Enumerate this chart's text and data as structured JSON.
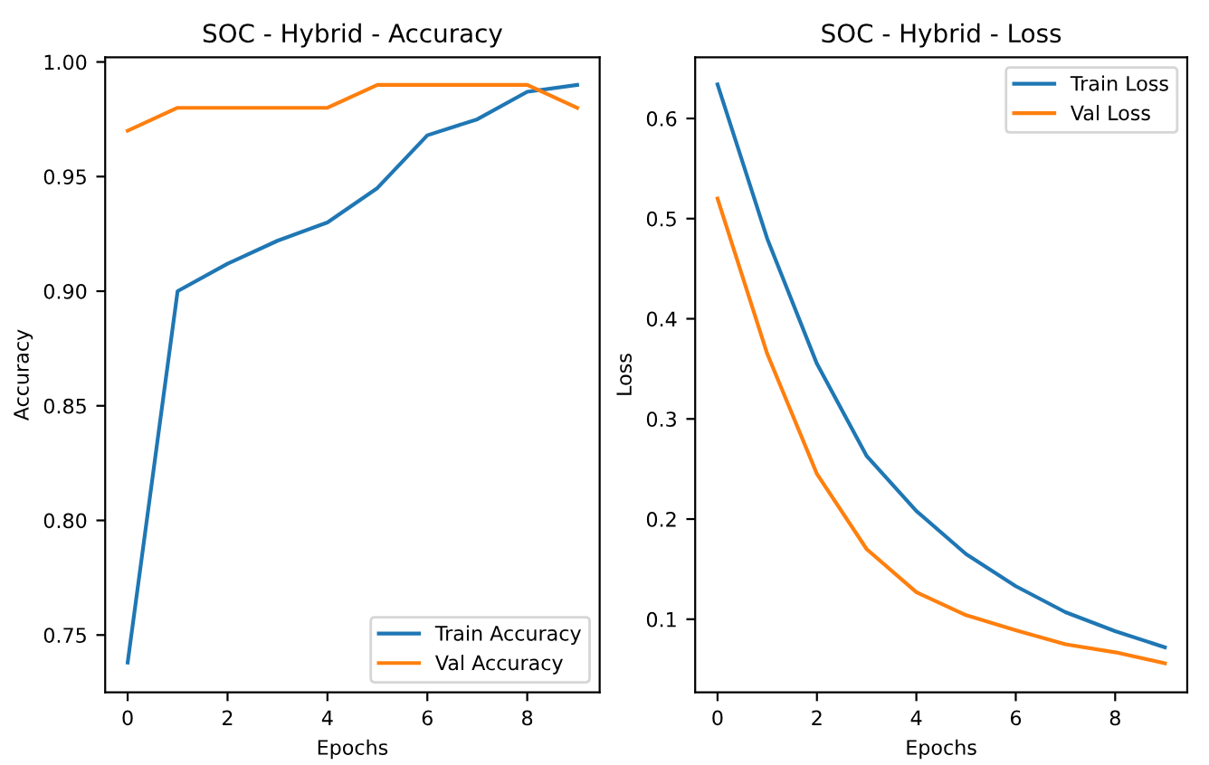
{
  "chart_data": [
    {
      "type": "line",
      "title": "SOC - Hybrid - Accuracy",
      "xlabel": "Epochs",
      "ylabel": "Accuracy",
      "x": [
        0,
        1,
        2,
        3,
        4,
        5,
        6,
        7,
        8,
        9
      ],
      "xlim": [
        -0.45,
        9.45
      ],
      "xticks": [
        0,
        2,
        4,
        6,
        8
      ],
      "ylim": [
        0.725,
        1.002
      ],
      "yticks": [
        {
          "value": 0.75,
          "label": "0.75"
        },
        {
          "value": 0.8,
          "label": "0.80"
        },
        {
          "value": 0.85,
          "label": "0.85"
        },
        {
          "value": 0.9,
          "label": "0.90"
        },
        {
          "value": 0.95,
          "label": "0.95"
        },
        {
          "value": 1.0,
          "label": "1.00"
        }
      ],
      "grid": false,
      "legend": "bottom right",
      "series": [
        {
          "name": "Train Accuracy",
          "color": "#1f77b4",
          "values": [
            0.738,
            0.9,
            0.912,
            0.922,
            0.93,
            0.945,
            0.968,
            0.975,
            0.987,
            0.99
          ]
        },
        {
          "name": "Val Accuracy",
          "color": "#ff7f0e",
          "values": [
            0.97,
            0.98,
            0.98,
            0.98,
            0.98,
            0.99,
            0.99,
            0.99,
            0.99,
            0.98
          ]
        }
      ]
    },
    {
      "type": "line",
      "title": "SOC - Hybrid - Loss",
      "xlabel": "Epochs",
      "ylabel": "Loss",
      "x": [
        0,
        1,
        2,
        3,
        4,
        5,
        6,
        7,
        8,
        9
      ],
      "xlim": [
        -0.45,
        9.45
      ],
      "xticks": [
        0,
        2,
        4,
        6,
        8
      ],
      "ylim": [
        0.027,
        0.661
      ],
      "yticks": [
        0.1,
        0.2,
        0.3,
        0.4,
        0.5,
        0.6
      ],
      "grid": false,
      "legend": "top right",
      "series": [
        {
          "name": "Train Loss",
          "color": "#1f77b4",
          "values": [
            0.634,
            0.48,
            0.355,
            0.263,
            0.208,
            0.165,
            0.133,
            0.107,
            0.088,
            0.072
          ]
        },
        {
          "name": "Val Loss",
          "color": "#ff7f0e",
          "values": [
            0.52,
            0.365,
            0.245,
            0.17,
            0.127,
            0.104,
            0.089,
            0.075,
            0.067,
            0.056
          ]
        }
      ]
    }
  ]
}
